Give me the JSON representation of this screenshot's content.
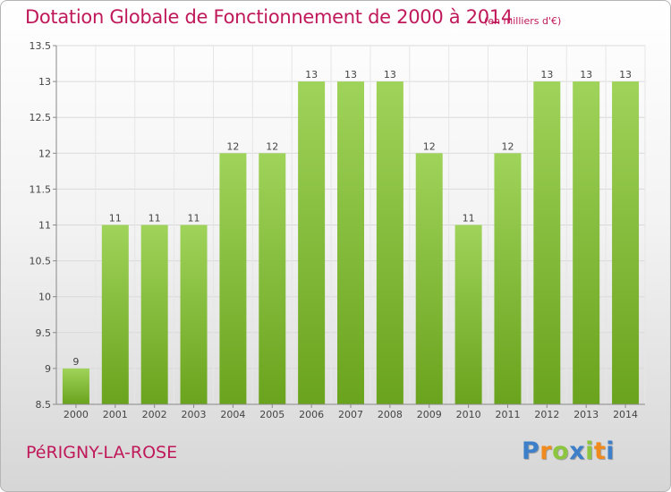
{
  "title": "Dotation Globale de Fonctionnement de 2000 à 2014",
  "subtitle": "(en milliers d'€)",
  "location": "PéRIGNY-LA-ROSE",
  "logo": {
    "text": "Proxiti",
    "letters": [
      {
        "char": "P",
        "color": "#3d7fc9"
      },
      {
        "char": "r",
        "color": "#f08a1c"
      },
      {
        "char": "o",
        "color": "#8cc63f"
      },
      {
        "char": "x",
        "color": "#3d7fc9"
      },
      {
        "char": "i",
        "color": "#8cc63f"
      },
      {
        "char": "t",
        "color": "#f08a1c"
      },
      {
        "char": "i",
        "color": "#3d7fc9"
      }
    ]
  },
  "colors": {
    "title": "#c0195a",
    "bar_light": "#9fd35a",
    "bar_dark": "#6aa31d",
    "grid": "#d9d9d9",
    "axis": "#888888"
  },
  "chart_data": {
    "type": "bar",
    "categories": [
      "2000",
      "2001",
      "2002",
      "2003",
      "2004",
      "2005",
      "2006",
      "2007",
      "2008",
      "2009",
      "2010",
      "2011",
      "2012",
      "2013",
      "2014"
    ],
    "values": [
      9,
      11,
      11,
      11,
      12,
      12,
      13,
      13,
      13,
      12,
      11,
      12,
      13,
      13,
      13
    ],
    "data_labels": [
      "9",
      "11",
      "11",
      "11",
      "12",
      "12",
      "13",
      "13",
      "13",
      "12",
      "11",
      "12",
      "13",
      "13",
      "13"
    ],
    "ylim": [
      8.5,
      13.5
    ],
    "yticks": [
      8.5,
      9,
      9.5,
      10,
      10.5,
      11,
      11.5,
      12,
      12.5,
      13,
      13.5
    ],
    "ytick_labels": [
      "8.5",
      "9",
      "9.5",
      "10",
      "10.5",
      "11",
      "11.5",
      "12",
      "12.5",
      "13",
      "13.5"
    ],
    "grid": true,
    "legend": "none"
  }
}
